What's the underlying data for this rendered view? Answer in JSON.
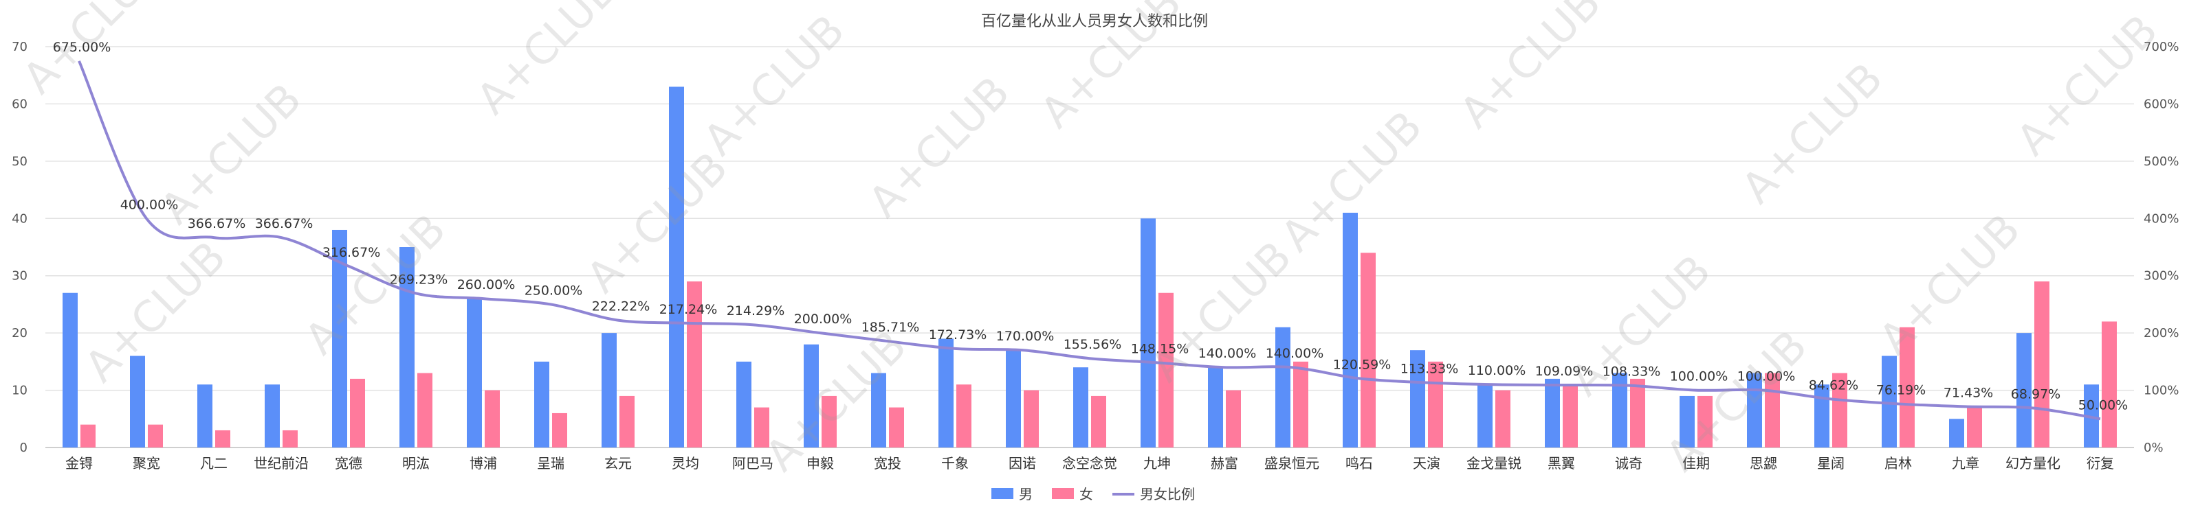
{
  "chart_data": {
    "type": "bar",
    "title": "百亿量化从业人员男女人数和比例",
    "categories": [
      "金锝",
      "聚宽",
      "凡二",
      "世纪前沿",
      "宽德",
      "明汯",
      "博浦",
      "呈瑞",
      "玄元",
      "灵均",
      "阿巴马",
      "申毅",
      "宽投",
      "千象",
      "因诺",
      "念空念觉",
      "九坤",
      "赫富",
      "盛泉恒元",
      "鸣石",
      "天演",
      "金戈量锐",
      "黑翼",
      "诚奇",
      "佳期",
      "思勰",
      "星阔",
      "启林",
      "九章",
      "幻方量化",
      "衍复"
    ],
    "series": [
      {
        "name": "男",
        "type": "bar",
        "axis": "left",
        "color": "#5b8ff9",
        "values": [
          27,
          16,
          11,
          11,
          38,
          35,
          26,
          15,
          20,
          63,
          15,
          18,
          13,
          19,
          17,
          14,
          40,
          14,
          21,
          41,
          17,
          11,
          12,
          13,
          9,
          13,
          11,
          16,
          5,
          20,
          11
        ]
      },
      {
        "name": "女",
        "type": "bar",
        "axis": "left",
        "color": "#ff7a9c",
        "values": [
          4,
          4,
          3,
          3,
          12,
          13,
          10,
          6,
          9,
          29,
          7,
          9,
          7,
          11,
          10,
          9,
          27,
          10,
          15,
          34,
          15,
          10,
          11,
          12,
          9,
          13,
          13,
          21,
          7,
          29,
          22
        ]
      },
      {
        "name": "男女比例",
        "type": "line",
        "axis": "right",
        "color": "#8f85d4",
        "values": [
          675.0,
          400.0,
          366.67,
          366.67,
          316.67,
          269.23,
          260.0,
          250.0,
          222.22,
          217.24,
          214.29,
          200.0,
          185.71,
          172.73,
          170.0,
          155.56,
          148.15,
          140.0,
          140.0,
          120.59,
          113.33,
          110.0,
          109.09,
          108.33,
          100.0,
          100.0,
          84.62,
          76.19,
          71.43,
          68.97,
          50.0
        ]
      }
    ],
    "ratio_labels": [
      "675.00%",
      "400.00%",
      "366.67%",
      "366.67%",
      "316.67%",
      "269.23%",
      "260.00%",
      "250.00%",
      "222.22%",
      "217.24%",
      "214.29%",
      "200.00%",
      "185.71%",
      "172.73%",
      "170.00%",
      "155.56%",
      "148.15%",
      "140.00%",
      "140.00%",
      "120.59%",
      "113.33%",
      "110.00%",
      "109.09%",
      "108.33%",
      "100.00%",
      "100.00%",
      "84.62%",
      "76.19%",
      "71.43%",
      "68.97%",
      "50.00%"
    ],
    "y_left": {
      "min": 0,
      "max": 70,
      "step": 10,
      "ticks": [
        "0",
        "10",
        "20",
        "30",
        "40",
        "50",
        "60",
        "70"
      ]
    },
    "y_right": {
      "min": 0,
      "max": 700,
      "step": 100,
      "ticks": [
        "0%",
        "100%",
        "200%",
        "300%",
        "400%",
        "500%",
        "600%",
        "700%"
      ]
    },
    "grid": true,
    "legend": {
      "position": "bottom",
      "items": [
        "男",
        "女",
        "男女比例"
      ]
    },
    "watermark": "A+CLUB"
  }
}
